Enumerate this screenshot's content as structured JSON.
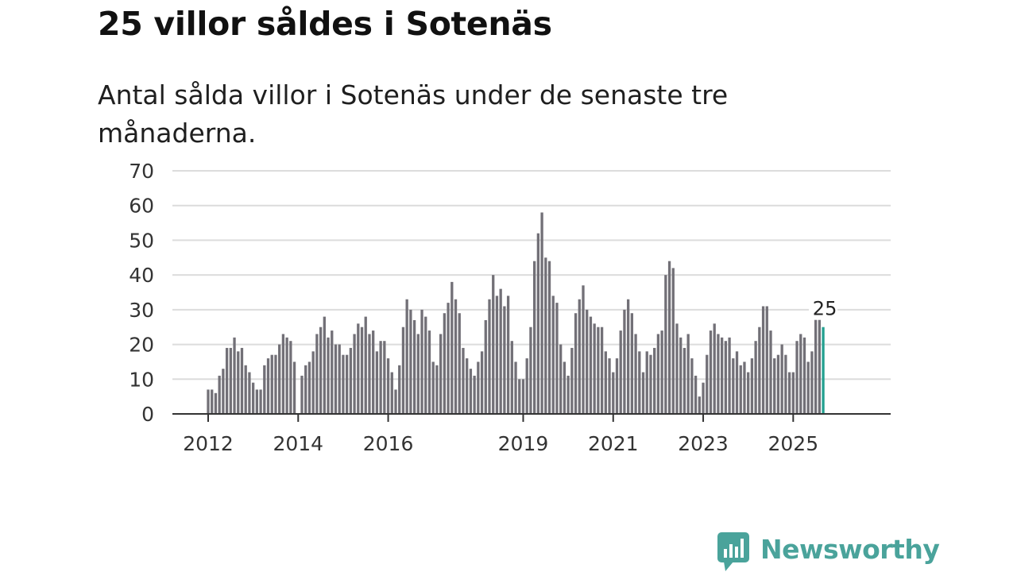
{
  "title": "25 villor såldes i Sotenäs",
  "subtitle": "Antal sålda villor i Sotenäs under de senaste tre månaderna.",
  "brand": "Newsworthy",
  "colors": {
    "bar": "#727077",
    "highlight": "#23a090",
    "grid": "#dcdcdc",
    "axis": "#333333",
    "brand": "#4aa39b"
  },
  "chart_data": {
    "type": "bar",
    "title": "25 villor såldes i Sotenäs",
    "xlabel": "",
    "ylabel": "",
    "ylim": [
      0,
      70
    ],
    "yticks": [
      0,
      10,
      20,
      30,
      40,
      50,
      60,
      70
    ],
    "start": "2012-01",
    "end": "2025-12",
    "xticks": [
      {
        "label": "2012",
        "index": 0
      },
      {
        "label": "2014",
        "index": 24
      },
      {
        "label": "2016",
        "index": 48
      },
      {
        "label": "2019",
        "index": 84
      },
      {
        "label": "2021",
        "index": 108
      },
      {
        "label": "2023",
        "index": 132
      },
      {
        "label": "2025",
        "index": 156
      }
    ],
    "values": [
      7,
      7,
      6,
      11,
      13,
      19,
      19,
      22,
      18,
      19,
      14,
      12,
      9,
      7,
      7,
      14,
      16,
      17,
      17,
      20,
      23,
      22,
      21,
      15,
      0,
      11,
      14,
      15,
      18,
      23,
      25,
      28,
      22,
      24,
      20,
      20,
      17,
      17,
      19,
      23,
      26,
      25,
      28,
      23,
      24,
      18,
      21,
      21,
      16,
      12,
      7,
      14,
      25,
      33,
      30,
      27,
      23,
      30,
      28,
      24,
      15,
      14,
      23,
      29,
      32,
      38,
      33,
      29,
      19,
      16,
      13,
      11,
      15,
      18,
      27,
      33,
      40,
      34,
      36,
      31,
      34,
      21,
      15,
      10,
      10,
      16,
      25,
      44,
      52,
      58,
      45,
      44,
      34,
      32,
      20,
      15,
      11,
      19,
      29,
      33,
      37,
      30,
      28,
      26,
      25,
      25,
      18,
      16,
      12,
      16,
      24,
      30,
      33,
      29,
      23,
      18,
      12,
      18,
      17,
      19,
      23,
      24,
      40,
      44,
      42,
      26,
      22,
      19,
      23,
      16,
      11,
      5,
      9,
      17,
      24,
      26,
      23,
      22,
      21,
      22,
      16,
      18,
      14,
      15,
      12,
      16,
      21,
      25,
      31,
      31,
      24,
      16,
      17,
      20,
      17,
      12,
      12,
      21,
      23,
      22,
      15,
      18,
      28,
      28,
      25
    ],
    "highlight_index": 164,
    "highlight_label": "25"
  }
}
